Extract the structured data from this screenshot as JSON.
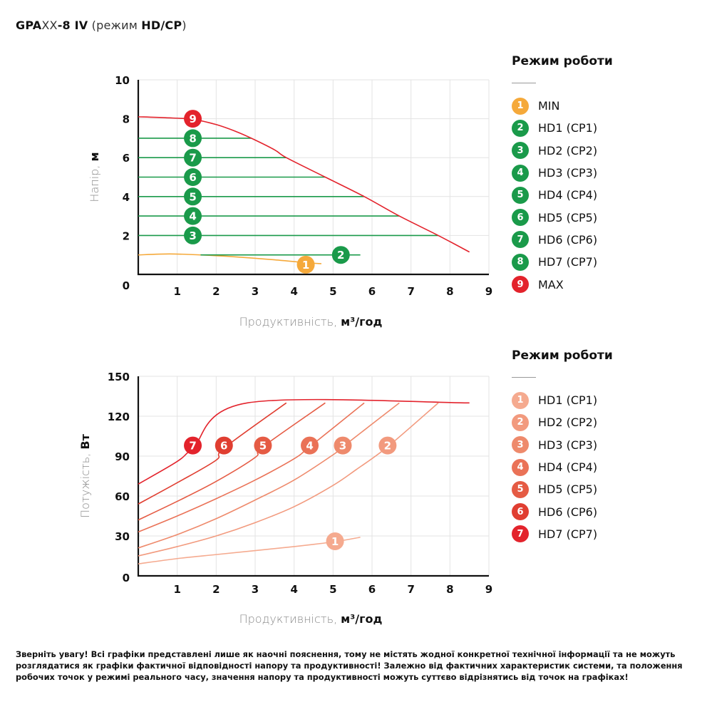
{
  "page": {
    "title_parts": [
      {
        "text": "GPA",
        "style": "bold"
      },
      {
        "text": "XX",
        "style": "light"
      },
      {
        "text": "-8 IV",
        "style": "bold"
      },
      {
        "text": " (режим ",
        "style": "light"
      },
      {
        "text": "HD/CP",
        "style": "bold"
      },
      {
        "text": ")",
        "style": "light"
      }
    ],
    "note": "Зверніть увагу! Всі графіки представлені лише як наочні пояснення, тому не містять жодної конкретної технічної інформації та не можуть розглядатися як графіки фактичної відповідності напору та продуктивності! Залежно від фактичних характеристик системи, та положення робочих точок у режимі реального часу, значення напору та продуктивності можуть суттєво відрізнятись від точок на графіках!"
  },
  "colors": {
    "green": "#1a9a4a",
    "orange": "#f5a93a",
    "red": "#e3232c",
    "axis": "#111111",
    "grid": "#e3e3e3"
  },
  "chart_data": [
    {
      "type": "line",
      "title": "Head vs flow",
      "xlabel_light": "Продуктивність, ",
      "xlabel_bold": "м³/год",
      "ylabel_light": "Напір, ",
      "ylabel_bold": "м",
      "xlim": [
        0,
        9
      ],
      "ylim": [
        0,
        10
      ],
      "xticks": [
        1,
        2,
        3,
        4,
        5,
        6,
        7,
        8,
        9
      ],
      "yticks": [
        2,
        4,
        6,
        8,
        10
      ],
      "origin_label": "0",
      "grid": true,
      "legend_title": "Режим роботи",
      "legend_position": "right",
      "series": [
        {
          "id": "1",
          "name": "MIN",
          "color": "#f5a93a",
          "marker_at": [
            4.3,
            0.5
          ],
          "points": [
            [
              0,
              1.0
            ],
            [
              0.8,
              1.05
            ],
            [
              1.6,
              1.0
            ],
            [
              2.5,
              0.9
            ],
            [
              3.5,
              0.75
            ],
            [
              4.3,
              0.6
            ],
            [
              4.7,
              0.55
            ]
          ]
        },
        {
          "id": "2",
          "name": "HD1 (CP1)",
          "color": "#1a9a4a",
          "marker_at": [
            5.2,
            1.0
          ],
          "points": [
            [
              1.6,
              1.0
            ],
            [
              5.7,
              1.0
            ]
          ]
        },
        {
          "id": "3",
          "name": "HD2 (CP2)",
          "color": "#1a9a4a",
          "marker_at": [
            1.4,
            2.0
          ],
          "points": [
            [
              0,
              2.0
            ],
            [
              7.7,
              2.0
            ]
          ]
        },
        {
          "id": "4",
          "name": "HD3 (CP3)",
          "color": "#1a9a4a",
          "marker_at": [
            1.4,
            3.0
          ],
          "points": [
            [
              0,
              3.0
            ],
            [
              6.7,
              3.0
            ]
          ]
        },
        {
          "id": "5",
          "name": "HD4 (CP4)",
          "color": "#1a9a4a",
          "marker_at": [
            1.4,
            4.0
          ],
          "points": [
            [
              0,
              4.0
            ],
            [
              5.8,
              4.0
            ]
          ]
        },
        {
          "id": "6",
          "name": "HD5 (CP5)",
          "color": "#1a9a4a",
          "marker_at": [
            1.4,
            5.0
          ],
          "points": [
            [
              0,
              5.0
            ],
            [
              4.8,
              5.0
            ]
          ]
        },
        {
          "id": "7",
          "name": "HD6 (CP6)",
          "color": "#1a9a4a",
          "marker_at": [
            1.4,
            6.0
          ],
          "points": [
            [
              0,
              6.0
            ],
            [
              3.8,
              6.0
            ]
          ]
        },
        {
          "id": "8",
          "name": "HD7 (CP7)",
          "color": "#1a9a4a",
          "marker_at": [
            1.4,
            7.0
          ],
          "points": [
            [
              0,
              7.0
            ],
            [
              2.9,
              7.0
            ]
          ]
        },
        {
          "id": "9",
          "name": "MAX",
          "color": "#e3232c",
          "marker_at": [
            1.4,
            8.0
          ],
          "points": [
            [
              0,
              8.1
            ],
            [
              0.7,
              8.05
            ],
            [
              1.4,
              7.97
            ],
            [
              2.0,
              7.7
            ],
            [
              2.5,
              7.35
            ],
            [
              2.9,
              7.0
            ],
            [
              3.5,
              6.4
            ],
            [
              3.8,
              6.0
            ],
            [
              4.8,
              5.0
            ],
            [
              5.8,
              4.0
            ],
            [
              6.7,
              3.0
            ],
            [
              7.7,
              2.0
            ],
            [
              8.5,
              1.15
            ]
          ]
        }
      ]
    },
    {
      "type": "line",
      "title": "Power vs flow",
      "xlabel_light": "Продуктивність, ",
      "xlabel_bold": "м³/год",
      "ylabel_light": "Потужість, ",
      "ylabel_bold": "Вт",
      "xlim": [
        0,
        9
      ],
      "ylim": [
        0,
        150
      ],
      "xticks": [
        1,
        2,
        3,
        4,
        5,
        6,
        7,
        8,
        9
      ],
      "yticks": [
        30,
        60,
        90,
        120,
        150
      ],
      "origin_label": "0",
      "grid": true,
      "legend_title": "Режим роботи",
      "legend_position": "right",
      "series": [
        {
          "id": "1",
          "name": "HD1 (CP1)",
          "color": "#f5aa8f",
          "marker_at": [
            5.05,
            26
          ],
          "points": [
            [
              0,
              9
            ],
            [
              1,
              13
            ],
            [
              2,
              16
            ],
            [
              3,
              19
            ],
            [
              4,
              22
            ],
            [
              5,
              25.5
            ],
            [
              5.7,
              29
            ]
          ]
        },
        {
          "id": "2",
          "name": "HD2 (CP2)",
          "color": "#f29a7e",
          "marker_at": [
            6.4,
            98
          ],
          "points": [
            [
              0,
              15
            ],
            [
              1,
              22
            ],
            [
              2,
              30
            ],
            [
              3,
              40
            ],
            [
              4,
              52
            ],
            [
              5,
              68
            ],
            [
              5.6,
              80
            ],
            [
              6.4,
              97
            ],
            [
              7.7,
              130
            ]
          ]
        },
        {
          "id": "3",
          "name": "HD3 (CP3)",
          "color": "#ee8a6c",
          "marker_at": [
            5.25,
            98
          ],
          "points": [
            [
              0,
              21
            ],
            [
              1,
              31
            ],
            [
              2,
              43
            ],
            [
              3,
              57
            ],
            [
              4,
              72
            ],
            [
              5,
              91
            ],
            [
              5.25,
              97
            ],
            [
              6.7,
              130
            ]
          ]
        },
        {
          "id": "4",
          "name": "HD4 (CP4)",
          "color": "#ea7257",
          "marker_at": [
            4.4,
            98
          ],
          "points": [
            [
              0,
              33
            ],
            [
              1,
              45
            ],
            [
              2,
              58
            ],
            [
              3,
              72
            ],
            [
              4,
              88
            ],
            [
              4.4,
              97
            ],
            [
              5.8,
              130
            ]
          ]
        },
        {
          "id": "5",
          "name": "HD5 (CP5)",
          "color": "#e55b44",
          "marker_at": [
            3.2,
            98
          ],
          "points": [
            [
              0,
              42
            ],
            [
              1,
              56
            ],
            [
              2,
              71
            ],
            [
              3,
              89
            ],
            [
              3.2,
              97
            ],
            [
              4.8,
              130
            ]
          ]
        },
        {
          "id": "6",
          "name": "HD6 (CP6)",
          "color": "#e03e31",
          "marker_at": [
            2.2,
            98
          ],
          "points": [
            [
              0,
              54
            ],
            [
              1,
              70
            ],
            [
              2,
              87
            ],
            [
              2.2,
              96
            ],
            [
              3.8,
              130
            ]
          ]
        },
        {
          "id": "7",
          "name": "HD7 (CP7)",
          "color": "#e3232c",
          "marker_at": [
            1.4,
            98
          ],
          "points": [
            [
              0,
              69
            ],
            [
              1,
              86
            ],
            [
              1.4,
              96
            ],
            [
              2.8,
              130
            ],
            [
              8.5,
              130
            ]
          ]
        }
      ]
    }
  ]
}
